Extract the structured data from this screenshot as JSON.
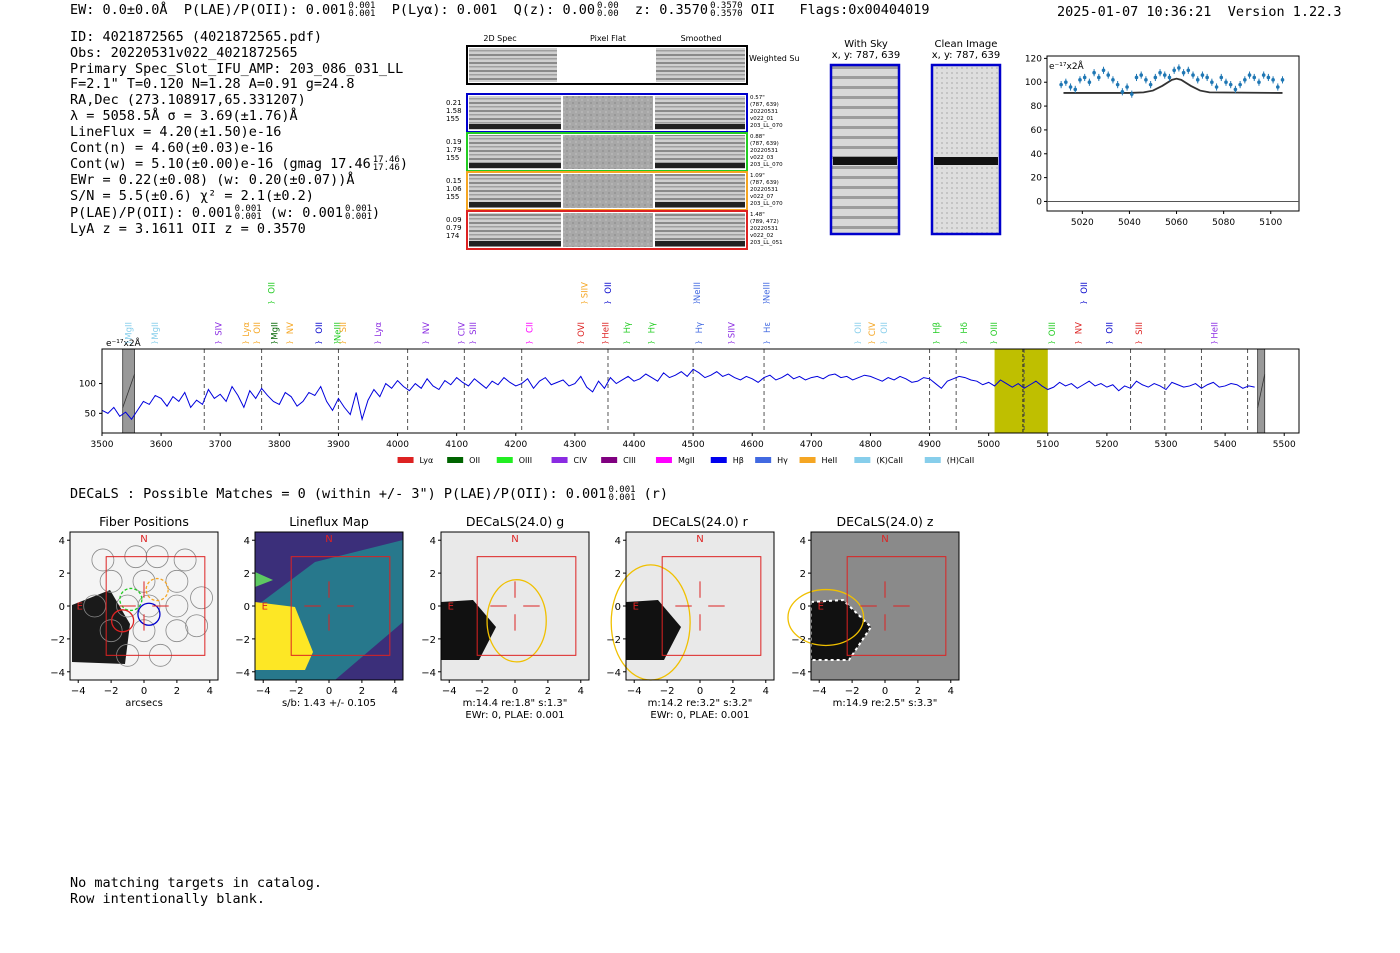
{
  "header": {
    "ew_label": "EW: 0.0±0.0Å",
    "plae_label": "P(LAE)/P(OII): 0.001",
    "plae_frac": [
      "0.001",
      "0.001"
    ],
    "plya_label": "P(Lyα): 0.001",
    "qz_label": "Q(z): 0.00",
    "qz_frac": [
      "0.00",
      "0.00"
    ],
    "z_label": "z: 0.3570",
    "z_frac": [
      "0.3570",
      "0.3570"
    ],
    "z_line": "OII",
    "flags": "Flags:0x00404019",
    "timestamp": "2025-01-07 10:36:21",
    "version": "Version 1.22.3"
  },
  "info": {
    "id": "ID: 4021872565 (4021872565.pdf)",
    "obs": "Obs: 20220531v022_4021872565",
    "primary": "Primary Spec_Slot_IFU_AMP: 203_086_031_LL",
    "fiber": "F=2.1\"  T=0.120  N=1.28  A=0.91  g=24.8",
    "radec": "RA,Dec (273.108917,65.331207)",
    "lambda": "λ = 5058.5Å  σ = 3.69(±1.76)Å",
    "lineflux": "LineFlux = 4.20(±1.50)e-16",
    "cont_n": "Cont(n) = 4.60(±0.03)e-16",
    "cont_w": "Cont(w) = 5.10(±0.00)e-16 (gmag 17.46",
    "cont_w_frac": [
      "17.46",
      "17.46"
    ],
    "ewr": "EWr = 0.22(±0.08) (w: 0.20(±0.07))Å",
    "sn": "S/N = 5.5(±0.6)  χ² = 2.1(±0.2)",
    "plae": "P(LAE)/P(OII): 0.001",
    "plae_frac": [
      "0.001",
      "0.001"
    ],
    "plae_w": "(w: 0.001",
    "plae_w_frac": [
      "0.001",
      "0.001"
    ],
    "lya": "LyA z = 3.1611  OII z = 0.3570"
  },
  "cutouts": {
    "headers": [
      "2D Spec",
      "Pixel Flat",
      "Smoothed"
    ],
    "weighted": "Weighted Sum",
    "rows": [
      {
        "vals": [
          "0.21",
          "1.58",
          "155"
        ],
        "meta": [
          "0.57\"",
          "(787, 639)",
          "20220531",
          "v022_01",
          "203_LL_070"
        ],
        "color": "#0000cc"
      },
      {
        "vals": [
          "0.19",
          "1.79",
          "155"
        ],
        "meta": [
          "0.88\"",
          "(787, 639)",
          "20220531",
          "v022_03",
          "203_LL_070"
        ],
        "color": "#22cc22"
      },
      {
        "vals": [
          "0.15",
          "1.06",
          "155"
        ],
        "meta": [
          "1.09\"",
          "(787, 639)",
          "20220531",
          "v022_07",
          "203_LL_070"
        ],
        "color": "#f5a623"
      },
      {
        "vals": [
          "0.09",
          "0.79",
          "174"
        ],
        "meta": [
          "1.48\"",
          "(789, 472)",
          "20220531",
          "v022_02",
          "203_LL_051"
        ],
        "color": "#dd2222"
      }
    ]
  },
  "sky": {
    "with_sky_title": "With Sky",
    "with_sky_coords": "x, y: 787, 639",
    "clean_title": "Clean Image",
    "clean_coords": "x, y: 787, 639"
  },
  "zoom_chart": {
    "type": "scatter",
    "unit_label": "e⁻¹⁷x2Å",
    "xlim": [
      5005,
      5112
    ],
    "ylim": [
      -8,
      122
    ],
    "yticks": [
      0,
      20,
      40,
      60,
      80,
      100,
      120
    ],
    "xticks": [
      5020,
      5040,
      5060,
      5080,
      5100
    ],
    "points_x": [
      5011,
      5013,
      5015,
      5017,
      5019,
      5021,
      5023,
      5025,
      5027,
      5029,
      5031,
      5033,
      5035,
      5037,
      5039,
      5041,
      5043,
      5045,
      5047,
      5049,
      5051,
      5053,
      5055,
      5057,
      5059,
      5061,
      5063,
      5065,
      5067,
      5069,
      5071,
      5073,
      5075,
      5077,
      5079,
      5081,
      5083,
      5085,
      5087,
      5089,
      5091,
      5093,
      5095,
      5097,
      5099,
      5101,
      5103,
      5105
    ],
    "points_y": [
      98,
      100,
      96,
      94,
      102,
      104,
      100,
      108,
      104,
      110,
      106,
      102,
      98,
      92,
      96,
      90,
      104,
      106,
      102,
      98,
      104,
      108,
      106,
      104,
      110,
      112,
      108,
      110,
      106,
      102,
      106,
      104,
      100,
      96,
      104,
      100,
      98,
      94,
      98,
      102,
      106,
      104,
      100,
      106,
      104,
      102,
      96,
      102
    ],
    "fit_x": [
      5012,
      5040,
      5046,
      5050,
      5054,
      5058,
      5060,
      5062,
      5066,
      5070,
      5074,
      5105
    ],
    "fit_y": [
      91,
      91,
      91.5,
      93,
      97,
      102,
      103,
      102,
      97,
      93,
      91.5,
      91
    ]
  },
  "spectrum": {
    "type": "line",
    "unit_label": "e⁻¹⁷x2Å",
    "xlim": [
      3500,
      5525
    ],
    "ylim": [
      17,
      158
    ],
    "yticks": [
      50,
      100
    ],
    "xticks": [
      3500,
      3600,
      3700,
      3800,
      3900,
      4000,
      4100,
      4200,
      4300,
      4400,
      4500,
      4600,
      4700,
      4800,
      4900,
      5000,
      5100,
      5200,
      5300,
      5400,
      5500
    ],
    "highlight": [
      5010,
      5100
    ],
    "highlight_center": 5058,
    "masks": [
      [
        3535,
        3555
      ],
      [
        5455,
        5467
      ]
    ],
    "dashed": [
      3673,
      3770,
      3900,
      4017,
      4113,
      4210,
      4356,
      4500,
      4620,
      4900,
      4945,
      5060,
      5240,
      5298,
      5360,
      5438
    ],
    "series_x": [
      3500,
      3510,
      3520,
      3530,
      3540,
      3550,
      3560,
      3570,
      3580,
      3590,
      3600,
      3610,
      3620,
      3630,
      3640,
      3650,
      3660,
      3670,
      3680,
      3690,
      3700,
      3710,
      3720,
      3730,
      3740,
      3750,
      3760,
      3770,
      3780,
      3790,
      3800,
      3810,
      3820,
      3830,
      3840,
      3850,
      3860,
      3870,
      3880,
      3890,
      3900,
      3910,
      3920,
      3930,
      3940,
      3950,
      3960,
      3970,
      3980,
      3990,
      4000,
      4010,
      4020,
      4030,
      4040,
      4050,
      4060,
      4070,
      4080,
      4090,
      4100,
      4110,
      4120,
      4130,
      4140,
      4150,
      4160,
      4170,
      4180,
      4190,
      4200,
      4210,
      4220,
      4230,
      4240,
      4250,
      4260,
      4270,
      4280,
      4290,
      4300,
      4310,
      4320,
      4330,
      4340,
      4350,
      4360,
      4370,
      4380,
      4390,
      4400,
      4410,
      4420,
      4430,
      4440,
      4450,
      4460,
      4470,
      4480,
      4490,
      4500,
      4510,
      4520,
      4530,
      4540,
      4550,
      4560,
      4570,
      4580,
      4590,
      4600,
      4610,
      4620,
      4630,
      4640,
      4650,
      4660,
      4670,
      4680,
      4690,
      4700,
      4710,
      4720,
      4730,
      4740,
      4750,
      4760,
      4770,
      4780,
      4790,
      4800,
      4810,
      4820,
      4830,
      4840,
      4850,
      4860,
      4870,
      4880,
      4890,
      4900,
      4910,
      4920,
      4930,
      4940,
      4950,
      4960,
      4970,
      4980,
      4990,
      5000,
      5010,
      5020,
      5030,
      5040,
      5050,
      5060,
      5070,
      5080,
      5090,
      5100,
      5110,
      5120,
      5130,
      5140,
      5150,
      5160,
      5170,
      5180,
      5190,
      5200,
      5210,
      5220,
      5230,
      5240,
      5250,
      5260,
      5270,
      5280,
      5290,
      5300,
      5310,
      5320,
      5330,
      5340,
      5350,
      5360,
      5370,
      5380,
      5390,
      5400,
      5410,
      5420,
      5430,
      5440,
      5450,
      5460,
      5470,
      5480,
      5490,
      5500,
      5510,
      5520
    ],
    "series_y": [
      55,
      50,
      60,
      45,
      52,
      40,
      55,
      70,
      65,
      80,
      75,
      62,
      78,
      70,
      85,
      60,
      72,
      65,
      90,
      75,
      82,
      70,
      95,
      80,
      60,
      88,
      75,
      92,
      80,
      70,
      65,
      85,
      78,
      62,
      70,
      85,
      80,
      95,
      70,
      55,
      75,
      60,
      48,
      85,
      40,
      72,
      90,
      78,
      100,
      92,
      105,
      95,
      88,
      100,
      92,
      108,
      96,
      90,
      105,
      98,
      110,
      102,
      96,
      108,
      100,
      92,
      104,
      98,
      110,
      102,
      96,
      100,
      108,
      92,
      104,
      110,
      98,
      102,
      106,
      96,
      100,
      112,
      94,
      86,
      104,
      92,
      110,
      100,
      106,
      112,
      104,
      108,
      116,
      110,
      104,
      118,
      110,
      114,
      120,
      112,
      124,
      118,
      110,
      114,
      120,
      112,
      116,
      110,
      106,
      112,
      108,
      102,
      110,
      114,
      106,
      110,
      116,
      108,
      112,
      106,
      110,
      112,
      108,
      114,
      116,
      110,
      112,
      106,
      110,
      114,
      112,
      108,
      104,
      110,
      106,
      112,
      108,
      102,
      104,
      110,
      108,
      100,
      92,
      104,
      108,
      112,
      110,
      106,
      104,
      98,
      102,
      96,
      106,
      100,
      94,
      100,
      92,
      98,
      104,
      96,
      90,
      94,
      102,
      96,
      100,
      92,
      98,
      104,
      96,
      100,
      94,
      98,
      88,
      96,
      92,
      104,
      98,
      94,
      100,
      96,
      90,
      102,
      98,
      94,
      96,
      100,
      92,
      98,
      102,
      94,
      96,
      100,
      98,
      92,
      96,
      94
    ],
    "lines": [
      {
        "label": "MgII",
        "x": 3545,
        "color": "#87ceeb",
        "row": "low"
      },
      {
        "label": "MgII",
        "x": 3590,
        "color": "#87ceeb",
        "row": "low"
      },
      {
        "label": "SIV",
        "x": 3697,
        "color": "#8a2be2",
        "row": "low"
      },
      {
        "label": "Lyα",
        "x": 3744,
        "color": "#f5a623",
        "row": "low"
      },
      {
        "label": "OII",
        "x": 3762,
        "color": "#f5a623",
        "row": "low"
      },
      {
        "label": "OII",
        "x": 3787,
        "color": "#22cc22",
        "row": "high"
      },
      {
        "label": "MgII",
        "x": 3792,
        "color": "#006400",
        "row": "low"
      },
      {
        "label": "NV",
        "x": 3818,
        "color": "#f5a623",
        "row": "low"
      },
      {
        "label": "OII",
        "x": 3867,
        "color": "#0000cc",
        "row": "low"
      },
      {
        "label": "NeIII",
        "x": 3898,
        "color": "#22cc22",
        "row": "low"
      },
      {
        "label": "SII",
        "x": 3908,
        "color": "#f5a623",
        "row": "low"
      },
      {
        "label": "Lyα",
        "x": 3967,
        "color": "#8a2be2",
        "row": "low"
      },
      {
        "label": "NV",
        "x": 4048,
        "color": "#8a2be2",
        "row": "low"
      },
      {
        "label": "CIV",
        "x": 4108,
        "color": "#8a2be2",
        "row": "low"
      },
      {
        "label": "SIII",
        "x": 4128,
        "color": "#8a2be2",
        "row": "low"
      },
      {
        "label": "CII",
        "x": 4223,
        "color": "#ff00ff",
        "row": "low"
      },
      {
        "label": "SIIV",
        "x": 4316,
        "color": "#f5a623",
        "row": "high"
      },
      {
        "label": "OVI",
        "x": 4310,
        "color": "#dd2222",
        "row": "low"
      },
      {
        "label": "OII",
        "x": 4356,
        "color": "#0000cc",
        "row": "high"
      },
      {
        "label": "HeII",
        "x": 4352,
        "color": "#dd2222",
        "row": "low"
      },
      {
        "label": "Hγ",
        "x": 4388,
        "color": "#22cc22",
        "row": "low"
      },
      {
        "label": "Hγ",
        "x": 4430,
        "color": "#22cc22",
        "row": "low"
      },
      {
        "label": "NeIII",
        "x": 4507,
        "color": "#4169e1",
        "row": "high"
      },
      {
        "label": "Hγ",
        "x": 4510,
        "color": "#4169e1",
        "row": "low"
      },
      {
        "label": "SIIV",
        "x": 4565,
        "color": "#8a2be2",
        "row": "low"
      },
      {
        "label": "NeIII",
        "x": 4624,
        "color": "#4169e1",
        "row": "high"
      },
      {
        "label": "Hε",
        "x": 4625,
        "color": "#4169e1",
        "row": "low"
      },
      {
        "label": "OII",
        "x": 4779,
        "color": "#87ceeb",
        "row": "low"
      },
      {
        "label": "CIV",
        "x": 4803,
        "color": "#f5a623",
        "row": "low"
      },
      {
        "label": "OII",
        "x": 4823,
        "color": "#87ceeb",
        "row": "low"
      },
      {
        "label": "Hβ",
        "x": 4912,
        "color": "#22cc22",
        "row": "low"
      },
      {
        "label": "Hδ",
        "x": 4958,
        "color": "#22cc22",
        "row": "low"
      },
      {
        "label": "OIII",
        "x": 5009,
        "color": "#22cc22",
        "row": "low"
      },
      {
        "label": "OIII",
        "x": 5107,
        "color": "#22cc22",
        "row": "low"
      },
      {
        "label": "OII",
        "x": 5161,
        "color": "#0000cc",
        "row": "high"
      },
      {
        "label": "NV",
        "x": 5152,
        "color": "#dd2222",
        "row": "low"
      },
      {
        "label": "OII",
        "x": 5204,
        "color": "#0000cc",
        "row": "low"
      },
      {
        "label": "SIII",
        "x": 5254,
        "color": "#dd2222",
        "row": "low"
      },
      {
        "label": "HeII",
        "x": 5382,
        "color": "#8a2be2",
        "row": "low"
      }
    ],
    "legend": [
      {
        "label": "Lyα",
        "color": "#dd2222"
      },
      {
        "label": "OII",
        "color": "#006400"
      },
      {
        "label": "OIII",
        "color": "#22ee22"
      },
      {
        "label": "CIV",
        "color": "#8a2be2"
      },
      {
        "label": "CIII",
        "color": "#800080"
      },
      {
        "label": "MgII",
        "color": "#ff00ff"
      },
      {
        "label": "Hβ",
        "color": "#0000ee"
      },
      {
        "label": "Hγ",
        "color": "#4169e1"
      },
      {
        "label": "HeII",
        "color": "#f5a623"
      },
      {
        "label": "(K)CaII",
        "color": "#87ceeb"
      },
      {
        "label": "(H)CaII",
        "color": "#87ceeb"
      }
    ]
  },
  "decals": {
    "summary": "DECaLS : Possible Matches = 0 (within +/- 3\")  P(LAE)/P(OII): 0.001",
    "summary_frac": [
      "0.001",
      "0.001"
    ],
    "summary_suffix": "(r)",
    "panels": [
      {
        "title": "Fiber Positions",
        "caption1": "arcsecs",
        "caption2": ""
      },
      {
        "title": "Lineflux Map",
        "caption1": "s/b: 1.43 +/- 0.105",
        "caption2": ""
      },
      {
        "title": "DECaLS(24.0) g",
        "caption1": "m:14.4  re:1.8\"  s:1.3\"",
        "caption2": "EWr: 0, PLAE: 0.001"
      },
      {
        "title": "DECaLS(24.0) r",
        "caption1": "m:14.2  re:3.2\"  s:3.2\"",
        "caption2": "EWr: 0, PLAE: 0.001"
      },
      {
        "title": "DECaLS(24.0) z",
        "caption1": "m:14.9  re:2.5\"  s:3.3\"",
        "caption2": ""
      }
    ],
    "ticks": [
      "−4",
      "−2",
      "0",
      "2",
      "4"
    ],
    "north": "N",
    "east": "E"
  },
  "footer": {
    "line1": "No matching targets in catalog.",
    "line2": "Row intentionally blank."
  },
  "chart_data": [
    {
      "type": "scatter",
      "title": "",
      "xlabel": "",
      "ylabel": "e⁻¹⁷x2Å",
      "xlim": [
        5005,
        5112
      ],
      "ylim": [
        -8,
        122
      ]
    },
    {
      "type": "line",
      "title": "",
      "xlabel": "",
      "ylabel": "e⁻¹⁷x2Å",
      "xlim": [
        3500,
        5525
      ],
      "ylim": [
        17,
        158
      ]
    }
  ]
}
